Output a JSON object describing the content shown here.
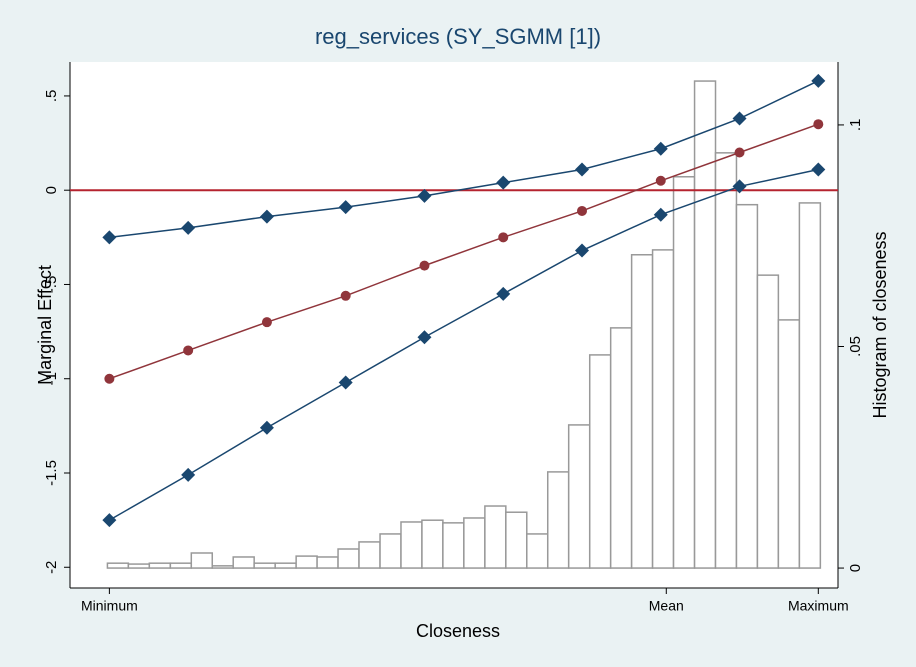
{
  "chart_data": {
    "type": "line",
    "title": "reg_services (SY_SGMM [1])",
    "x_label": "Closeness",
    "y_label": "Marginal Effect",
    "y2_label": "Histogram of closeness",
    "x": [
      0,
      1,
      2,
      3,
      4,
      5,
      6,
      7,
      8,
      9
    ],
    "xlim": [
      -0.5,
      9.25
    ],
    "xticks": [
      {
        "value": 0,
        "label": "Minimum"
      },
      {
        "value": 7.07,
        "label": "Mean"
      },
      {
        "value": 9,
        "label": "Maximum"
      }
    ],
    "ylim": [
      -2.11,
      0.68
    ],
    "yticks": [
      -2,
      {
        "value": -1.5,
        "label": "-1.5"
      },
      -1,
      {
        "value": -0.5,
        "label": "-.5"
      },
      0,
      {
        "value": 0.5,
        "label": ".5"
      }
    ],
    "y2lim": [
      -0.0045,
      0.1142
    ],
    "y2ticks": [
      0,
      {
        "value": 0.05,
        "label": ".05"
      },
      {
        "value": 0.1,
        "label": ".1"
      }
    ],
    "refline": 0,
    "refline_color": "#b5232f",
    "series": [
      {
        "color": "#1a476f",
        "marker": "diamond",
        "values": [
          -0.25,
          -0.2,
          -0.14,
          -0.09,
          -0.03,
          0.04,
          0.11,
          0.22,
          0.38,
          0.58
        ]
      },
      {
        "color": "#90353b",
        "marker": "circle",
        "values": [
          -1.0,
          -0.85,
          -0.7,
          -0.56,
          -0.4,
          -0.25,
          -0.11,
          0.05,
          0.2,
          0.35
        ]
      },
      {
        "color": "#1a476f",
        "marker": "diamond",
        "values": [
          -1.75,
          -1.51,
          -1.26,
          -1.02,
          -0.78,
          -0.55,
          -0.32,
          -0.13,
          0.02,
          0.11
        ]
      }
    ],
    "histogram": {
      "axis": "y2",
      "color": "#999999",
      "bins": [
        -0.025,
        0.241,
        0.507,
        0.774,
        1.04,
        1.306,
        1.572,
        1.838,
        2.105,
        2.371,
        2.637,
        2.903,
        3.169,
        3.436,
        3.702,
        3.968,
        4.234,
        4.5,
        4.767,
        5.033,
        5.299,
        5.565,
        5.831,
        6.098,
        6.364,
        6.63,
        6.896,
        7.162,
        7.429,
        7.695,
        7.961,
        8.227,
        8.493,
        8.76,
        9.026
      ],
      "values": [
        0.0011,
        0.0009,
        0.0011,
        0.0011,
        0.0034,
        0.0005,
        0.0025,
        0.0011,
        0.0011,
        0.0027,
        0.0025,
        0.0043,
        0.0059,
        0.0077,
        0.0104,
        0.0108,
        0.0102,
        0.0113,
        0.014,
        0.0126,
        0.0077,
        0.0217,
        0.0323,
        0.0481,
        0.0542,
        0.0707,
        0.0718,
        0.0883,
        0.1099,
        0.0937,
        0.082,
        0.0661,
        0.056,
        0.0824
      ]
    }
  }
}
